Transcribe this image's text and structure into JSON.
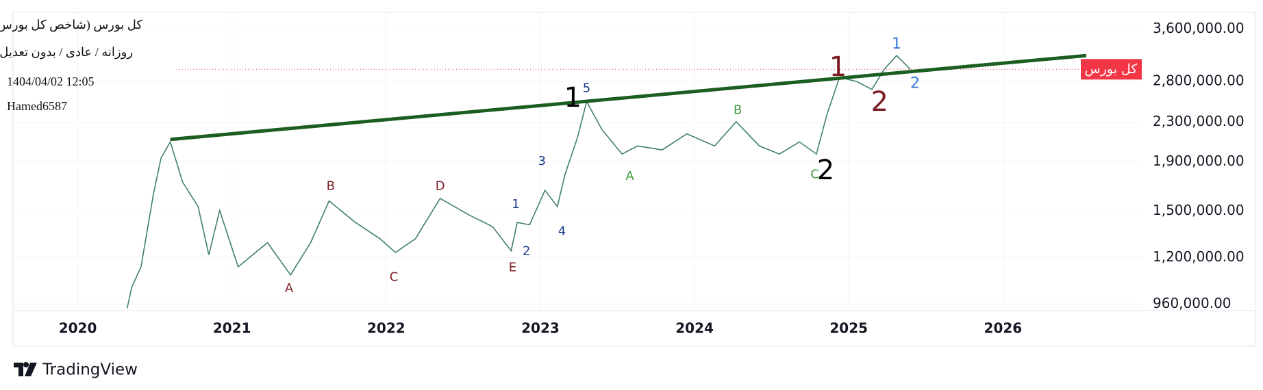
{
  "header": {
    "symbol": "کل بورس (شاخص کل بورس)",
    "settings": "روزانه / عادی / بدون تعدیل",
    "date": "1404/04/02 12:05",
    "author": "Hamed6587"
  },
  "brand": "TradingView",
  "chart_data": {
    "type": "line",
    "yscale": "log",
    "grid": true,
    "xlim": [
      2019.58,
      2026.9
    ],
    "xticks": [
      2020,
      2021,
      2022,
      2023,
      2024,
      2025,
      2026
    ],
    "ylim": [
      930000,
      3900000
    ],
    "yticks": [
      {
        "value": 960000,
        "label": "960,000.00"
      },
      {
        "value": 1200000,
        "label": "1,200,000.00"
      },
      {
        "value": 1500000,
        "label": "1,500,000.00"
      },
      {
        "value": 1900000,
        "label": "1,900,000.00"
      },
      {
        "value": 2300000,
        "label": "2,300,000.00"
      },
      {
        "value": 2800000,
        "label": "2,800,000.00"
      },
      {
        "value": 3600000,
        "label": "3,600,000.00"
      }
    ],
    "series": [
      {
        "name": "کل بورس",
        "color": "#3f7f6e",
        "x": [
          2020.32,
          2020.35,
          2020.41,
          2020.49,
          2020.54,
          2020.6,
          2020.68,
          2020.78,
          2020.85,
          2020.92,
          2021.04,
          2021.23,
          2021.38,
          2021.51,
          2021.63,
          2021.8,
          2021.96,
          2022.06,
          2022.19,
          2022.35,
          2022.53,
          2022.69,
          2022.81,
          2022.85,
          2022.93,
          2023.03,
          2023.11,
          2023.16,
          2023.24,
          2023.3,
          2023.4,
          2023.53,
          2023.63,
          2023.79,
          2023.95,
          2024.13,
          2024.27,
          2024.42,
          2024.55,
          2024.68,
          2024.79,
          2024.86,
          2024.94,
          2025.05,
          2025.15,
          2025.23,
          2025.31,
          2025.4
        ],
        "values": [
          940000,
          1041000,
          1148000,
          1626000,
          1936000,
          2092000,
          1724000,
          1534000,
          1216000,
          1505000,
          1148000,
          1289000,
          1104000,
          1289000,
          1576000,
          1421000,
          1314000,
          1230000,
          1314000,
          1595000,
          1477000,
          1392000,
          1240000,
          1421000,
          1405000,
          1658000,
          1534000,
          1791000,
          2134000,
          2539000,
          2218000,
          1974000,
          2052000,
          2013000,
          2175000,
          2052000,
          2305000,
          2052000,
          1974000,
          2092000,
          1974000,
          2396000,
          2853000,
          2798000,
          2693000,
          2966000,
          3168000,
          2966000
        ]
      }
    ],
    "trendline": {
      "color": "#1b5e20",
      "x": [
        2020.6,
        2026.54
      ],
      "values": [
        2117000,
        3168000
      ]
    },
    "price_label": {
      "text": "کل بورس",
      "value": 2966000,
      "color": "#f23645"
    },
    "annotations": [
      {
        "text": "A",
        "x": 2021.37,
        "y": 1034000,
        "color": "#7b1c24",
        "size": "small"
      },
      {
        "text": "B",
        "x": 2021.64,
        "y": 1690000,
        "color": "#7b1c24",
        "size": "small"
      },
      {
        "text": "C",
        "x": 2022.05,
        "y": 1091000,
        "color": "#7b1c24",
        "size": "small"
      },
      {
        "text": "D",
        "x": 2022.35,
        "y": 1690000,
        "color": "#7b1c24",
        "size": "small"
      },
      {
        "text": "E",
        "x": 2022.82,
        "y": 1143000,
        "color": "#7b1c24",
        "size": "small"
      },
      {
        "text": "1",
        "x": 2022.84,
        "y": 1547000,
        "color": "#1a3a8c",
        "size": "small"
      },
      {
        "text": "2",
        "x": 2022.91,
        "y": 1235000,
        "color": "#1a3a8c",
        "size": "small"
      },
      {
        "text": "3",
        "x": 2023.01,
        "y": 1906000,
        "color": "#1a3a8c",
        "size": "small"
      },
      {
        "text": "4",
        "x": 2023.14,
        "y": 1360000,
        "color": "#1a3a8c",
        "size": "small"
      },
      {
        "text": "5",
        "x": 2023.3,
        "y": 2703000,
        "color": "#1a3a8c",
        "size": "small"
      },
      {
        "text": "1",
        "x": 2023.21,
        "y": 2570000,
        "color": "#000000",
        "size": "large"
      },
      {
        "text": "A",
        "x": 2023.58,
        "y": 1771000,
        "color": "#3c9a3c",
        "size": "small"
      },
      {
        "text": "B",
        "x": 2024.28,
        "y": 2434000,
        "color": "#3c9a3c",
        "size": "small"
      },
      {
        "text": "C",
        "x": 2024.78,
        "y": 1785000,
        "color": "#3c9a3c",
        "size": "small"
      },
      {
        "text": "2",
        "x": 2024.85,
        "y": 1814000,
        "color": "#000000",
        "size": "large"
      },
      {
        "text": "1",
        "x": 2024.93,
        "y": 2977000,
        "color": "#7b1c24",
        "size": "large"
      },
      {
        "text": "2",
        "x": 2025.2,
        "y": 2520000,
        "color": "#7b1c24",
        "size": "large"
      },
      {
        "text": "1",
        "x": 2025.31,
        "y": 3344000,
        "color": "#3a78d8",
        "size": "medium"
      },
      {
        "text": "2",
        "x": 2025.43,
        "y": 2765000,
        "color": "#3a78d8",
        "size": "medium"
      }
    ]
  }
}
